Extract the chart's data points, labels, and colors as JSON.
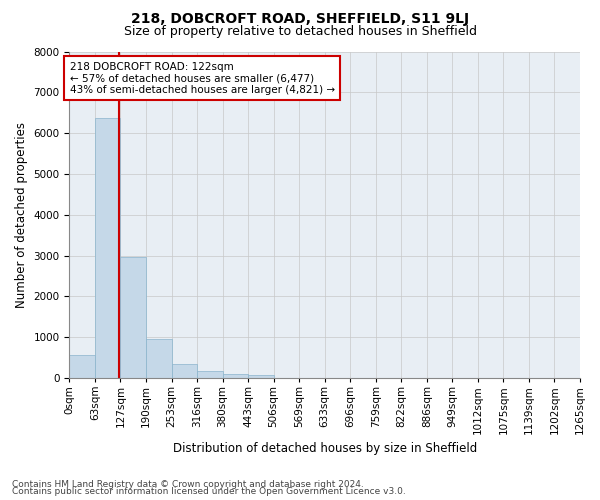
{
  "title": "218, DOBCROFT ROAD, SHEFFIELD, S11 9LJ",
  "subtitle": "Size of property relative to detached houses in Sheffield",
  "xlabel": "Distribution of detached houses by size in Sheffield",
  "ylabel": "Number of detached properties",
  "footnote1": "Contains HM Land Registry data © Crown copyright and database right 2024.",
  "footnote2": "Contains public sector information licensed under the Open Government Licence v3.0.",
  "annotation_line1": "218 DOBCROFT ROAD: 122sqm",
  "annotation_line2": "← 57% of detached houses are smaller (6,477)",
  "annotation_line3": "43% of semi-detached houses are larger (4,821) →",
  "bin_labels": [
    "0sqm",
    "63sqm",
    "127sqm",
    "190sqm",
    "253sqm",
    "316sqm",
    "380sqm",
    "443sqm",
    "506sqm",
    "569sqm",
    "633sqm",
    "696sqm",
    "759sqm",
    "822sqm",
    "886sqm",
    "949sqm",
    "1012sqm",
    "1075sqm",
    "1139sqm",
    "1202sqm",
    "1265sqm"
  ],
  "bar_heights": [
    560,
    6380,
    2970,
    960,
    340,
    160,
    100,
    70,
    0,
    0,
    0,
    0,
    0,
    0,
    0,
    0,
    0,
    0,
    0,
    0
  ],
  "bar_color": "#c5d8e8",
  "bar_edge_color": "#8ab4cc",
  "vline_color": "#cc0000",
  "vline_bar_index": 1.93,
  "ylim": [
    0,
    8000
  ],
  "yticks": [
    0,
    1000,
    2000,
    3000,
    4000,
    5000,
    6000,
    7000,
    8000
  ],
  "grid_color": "#c8c8c8",
  "bg_color": "#e8eef4",
  "title_fontsize": 10,
  "subtitle_fontsize": 9,
  "axis_label_fontsize": 8.5,
  "tick_fontsize": 7.5,
  "annotation_fontsize": 7.5,
  "footnote_fontsize": 6.5
}
